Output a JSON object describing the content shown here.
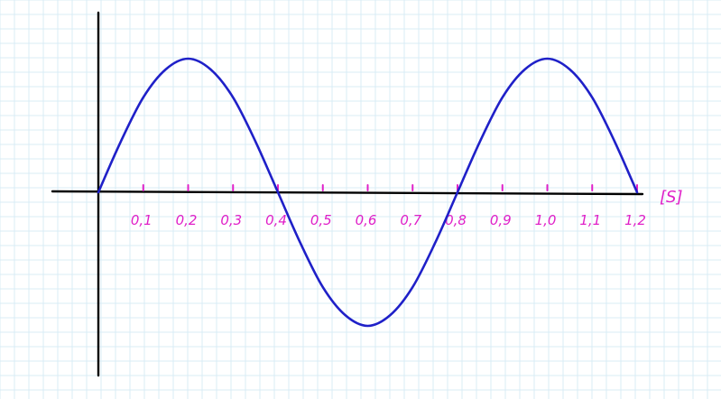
{
  "chart_data": {
    "type": "line",
    "title": "",
    "xlabel": "[S]",
    "ylabel": "",
    "xlim": [
      0,
      1.2
    ],
    "ylim": [
      -1,
      1
    ],
    "grid": true,
    "x_ticks": [
      0.1,
      0.2,
      0.3,
      0.4,
      0.5,
      0.6,
      0.7,
      0.8,
      0.9,
      1.0,
      1.1,
      1.2
    ],
    "x_tick_labels": [
      "0,1",
      "0,2",
      "0,3",
      "0,4",
      "0,5",
      "0,6",
      "0,7",
      "0,8",
      "0,9",
      "1,0",
      "1,1",
      "1,2"
    ],
    "series": [
      {
        "x": [
          0,
          0.05,
          0.1,
          0.15,
          0.2,
          0.25,
          0.3,
          0.35,
          0.4,
          0.45,
          0.5,
          0.55,
          0.6,
          0.65,
          0.7,
          0.75,
          0.8,
          0.85,
          0.9,
          0.95,
          1.0,
          1.05,
          1.1,
          1.15,
          1.2
        ],
        "y": [
          0,
          0.38,
          0.71,
          0.92,
          1.0,
          0.92,
          0.71,
          0.38,
          0,
          -0.38,
          -0.71,
          -0.92,
          -1.0,
          -0.92,
          -0.71,
          -0.38,
          0,
          0.38,
          0.71,
          0.92,
          1.0,
          0.92,
          0.71,
          0.38,
          0
        ]
      }
    ]
  },
  "colors": {
    "background": "#ffffff",
    "grid": "#d9ecf6",
    "axis": "#000000",
    "curve": "#1f20c8",
    "ticks": "#e020c8"
  }
}
